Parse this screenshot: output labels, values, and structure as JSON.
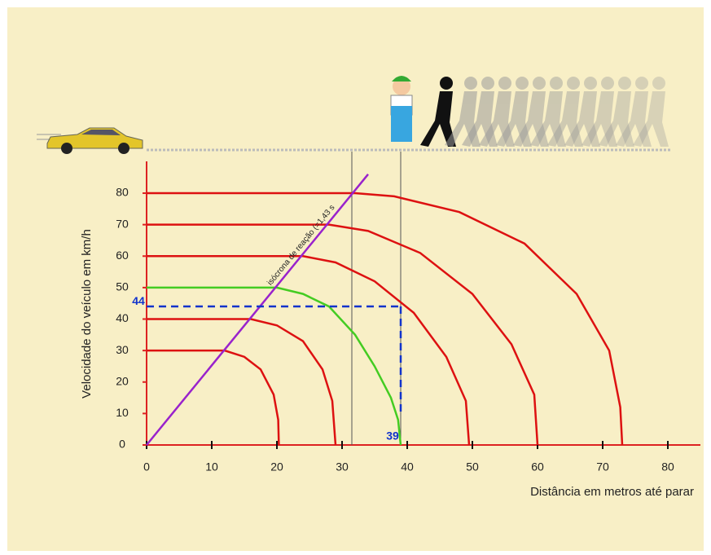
{
  "chart_data": {
    "type": "line",
    "x_label": "Distância em metros até parar",
    "y_label": "Velocidade do veículo em km/h",
    "xlim": [
      0,
      85
    ],
    "ylim": [
      0,
      90
    ],
    "xticks": [
      0,
      10,
      20,
      30,
      40,
      50,
      60,
      70,
      80
    ],
    "yticks": [
      0,
      10,
      20,
      30,
      40,
      50,
      60,
      70,
      80
    ],
    "axis_color": "#dd2222",
    "series": [
      {
        "color": "#dd1111",
        "x": [
          0,
          12,
          15,
          17.5,
          19.5,
          20.2,
          20.3
        ],
        "values": [
          30,
          30,
          28,
          24,
          16,
          8,
          0
        ]
      },
      {
        "color": "#dd1111",
        "x": [
          0,
          16,
          20,
          24,
          27,
          28.5,
          29
        ],
        "values": [
          40,
          40,
          38,
          33,
          24,
          14,
          0
        ]
      },
      {
        "color": "#44cc22",
        "x": [
          0,
          20,
          24,
          28,
          32,
          35,
          37.5,
          38.6,
          39
        ],
        "values": [
          50,
          50,
          48,
          44,
          35,
          25,
          15,
          8,
          0
        ]
      },
      {
        "color": "#dd1111",
        "x": [
          0,
          24,
          29,
          35,
          41,
          46,
          49,
          49.5
        ],
        "values": [
          60,
          60,
          58,
          52,
          42,
          28,
          14,
          0
        ]
      },
      {
        "color": "#dd1111",
        "x": [
          0,
          28,
          34,
          42,
          50,
          56,
          59.5,
          60
        ],
        "values": [
          70,
          70,
          68,
          61,
          48,
          32,
          16,
          0
        ]
      },
      {
        "color": "#dd1111",
        "x": [
          0,
          32,
          38,
          48,
          58,
          66,
          71,
          72.7,
          73
        ],
        "values": [
          80,
          80,
          79,
          74,
          64,
          48,
          30,
          12,
          0
        ]
      }
    ],
    "reaction_line": {
      "label": "isócrona de reação (=1,43 s",
      "color": "#9922cc",
      "x": [
        0,
        34
      ],
      "values": [
        0,
        86
      ]
    },
    "highlight": {
      "speed": 44,
      "distance": 39,
      "color": "#1133cc"
    },
    "guide_lines": [
      31.5,
      39
    ]
  }
}
